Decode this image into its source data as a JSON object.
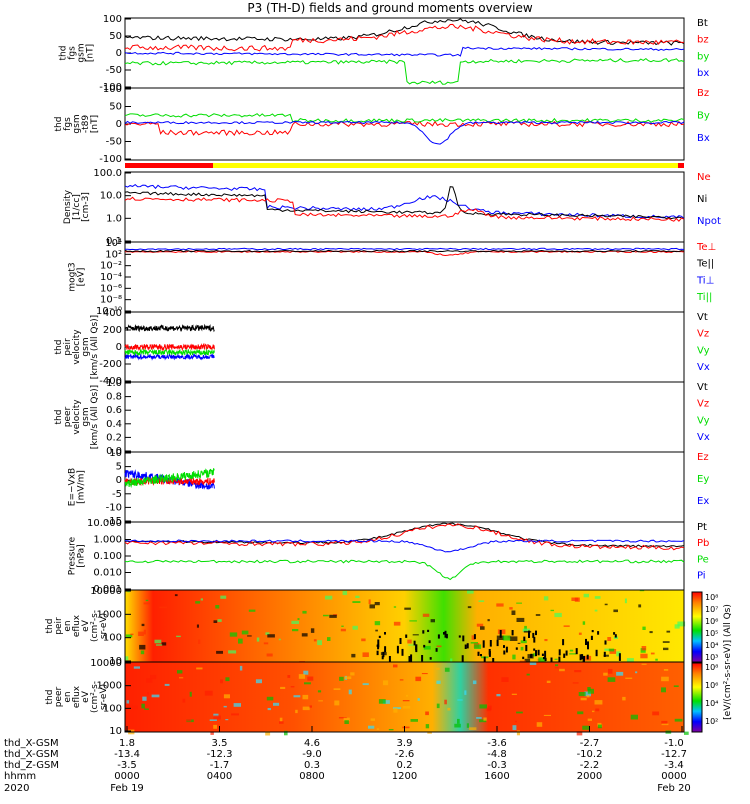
{
  "title": "P3 (TH-D) fields and ground moments overview",
  "colors": {
    "black": "#000000",
    "red": "#ff0000",
    "green": "#00dd00",
    "blue": "#0000ff"
  },
  "chart_data": {
    "type": "line",
    "x_axis": {
      "time_ticks": [
        "0000",
        "0400",
        "0800",
        "1200",
        "1600",
        "2000",
        "0000"
      ],
      "date_ticks": [
        "Feb 19",
        "",
        "",
        "",
        "",
        "",
        "Feb 20"
      ],
      "year": "2020",
      "ephemeris": [
        {
          "label": "thd_X-GSM",
          "values": [
            "1.8",
            "3.5",
            "4.6",
            "3.9",
            "-3.6",
            "-2.7",
            "-1.0"
          ]
        },
        {
          "label": "thd_X-GSM",
          "values": [
            "-13.4",
            "-12.3",
            "-9.0",
            "-2.6",
            "-4.8",
            "-10.2",
            "-12.7"
          ]
        },
        {
          "label": "thd_Z-GSM",
          "values": [
            "-3.5",
            "-1.7",
            "0.3",
            "0.2",
            "-0.3",
            "-2.2",
            "-3.4"
          ]
        },
        {
          "label": "hhmm",
          "values": [
            "0000",
            "0400",
            "0800",
            "1200",
            "1600",
            "2000",
            "0000"
          ]
        }
      ]
    },
    "panels": [
      {
        "id": "fgs",
        "ylabel": [
          "thd",
          "fgs",
          "gsm",
          "[nT]"
        ],
        "yticks": [
          "100",
          "50",
          "0",
          "-50",
          "-100"
        ],
        "ylim": [
          -100,
          100
        ],
        "legend": [
          {
            "name": "Bt",
            "color": "#000000"
          },
          {
            "name": "bz",
            "color": "#ff0000"
          },
          {
            "name": "by",
            "color": "#00dd00"
          },
          {
            "name": "bx",
            "color": "#0000ff"
          }
        ]
      },
      {
        "id": "fgs_t89",
        "ylabel": [
          "thd",
          "fgs",
          "gsm",
          "-t89",
          "[nT]"
        ],
        "yticks": [
          "100",
          "50",
          "0",
          "-50",
          "-100"
        ],
        "ylim": [
          -120,
          100
        ],
        "legend": [
          {
            "name": "Bz",
            "color": "#ff0000"
          },
          {
            "name": "By",
            "color": "#00dd00"
          },
          {
            "name": "Bx",
            "color": "#0000ff"
          }
        ]
      },
      {
        "id": "density",
        "ylabel": [
          "Density",
          "[1/cc]",
          "[cm-3]"
        ],
        "yticks": [
          "100.0",
          "10.0",
          "1.0",
          "0.1"
        ],
        "log": true,
        "legend": [
          {
            "name": "Ne",
            "color": "#ff0000"
          },
          {
            "name": "Ni",
            "color": "#000000"
          },
          {
            "name": "Npot",
            "color": "#0000ff"
          }
        ]
      },
      {
        "id": "temp",
        "ylabel": [
          "mogt3",
          "[eV]"
        ],
        "yticks": [
          "10⁴",
          "10²",
          "10⁻²",
          "10⁻⁴",
          "10⁻⁶",
          "10⁻⁸",
          "10⁻¹⁰"
        ],
        "log": true,
        "legend": [
          {
            "name": "Te⊥",
            "color": "#ff0000"
          },
          {
            "name": "Te||",
            "color": "#000000"
          },
          {
            "name": "Ti⊥",
            "color": "#0000ff"
          },
          {
            "name": "Ti||",
            "color": "#00dd00"
          }
        ]
      },
      {
        "id": "peir_vel",
        "ylabel": [
          "thd",
          "peir",
          "velocity",
          "gsm",
          "[km/s (All Qs)]"
        ],
        "yticks": [
          "400",
          "200",
          "0",
          "-200",
          "-400"
        ],
        "ylim": [
          -400,
          400
        ],
        "legend": [
          {
            "name": "Vt",
            "color": "#000000"
          },
          {
            "name": "Vz",
            "color": "#ff0000"
          },
          {
            "name": "Vy",
            "color": "#00dd00"
          },
          {
            "name": "Vx",
            "color": "#0000ff"
          }
        ]
      },
      {
        "id": "peer_vel",
        "ylabel": [
          "thd",
          "peer",
          "velocity",
          "gsm",
          "[km/s (All Qs)]"
        ],
        "yticks": [
          "1.0",
          "0.8",
          "0.6",
          "0.4",
          "0.2",
          "0.0"
        ],
        "ylim": [
          0,
          1
        ],
        "legend": [
          {
            "name": "Vt",
            "color": "#000000"
          },
          {
            "name": "Vz",
            "color": "#ff0000"
          },
          {
            "name": "Vy",
            "color": "#00dd00"
          },
          {
            "name": "Vx",
            "color": "#0000ff"
          }
        ]
      },
      {
        "id": "efield",
        "ylabel": [
          "E=−VxB",
          "[mV/m]"
        ],
        "yticks": [
          "10",
          "5",
          "0",
          "-5",
          "-10",
          "-15"
        ],
        "ylim": [
          -15,
          10
        ],
        "legend": [
          {
            "name": "Ez",
            "color": "#ff0000"
          },
          {
            "name": "Ey",
            "color": "#00dd00"
          },
          {
            "name": "Ex",
            "color": "#0000ff"
          }
        ]
      },
      {
        "id": "pressure",
        "ylabel": [
          "Pressure",
          "[nPa]"
        ],
        "yticks": [
          "10.000",
          "1.000",
          "0.100",
          "0.010",
          "0.001"
        ],
        "log": true,
        "legend": [
          {
            "name": "Pt",
            "color": "#000000"
          },
          {
            "name": "Pb",
            "color": "#ff0000"
          },
          {
            "name": "Pe",
            "color": "#00dd00"
          },
          {
            "name": "Pi",
            "color": "#0000ff"
          }
        ]
      },
      {
        "id": "peir_spec",
        "type": "heatmap",
        "ylabel": [
          "thd",
          "peir",
          "en",
          "eflux",
          "eV",
          "(cm²-s-",
          "sr-eV)"
        ],
        "yticks": [
          "10000",
          "1000",
          "100",
          "10"
        ],
        "log": true
      },
      {
        "id": "peer_spec",
        "type": "heatmap",
        "ylabel": [
          "thd",
          "peer",
          "en",
          "eflux",
          "eV",
          "(cm²-s-",
          "sr-eV)"
        ],
        "yticks": [
          "10000",
          "1000",
          "100",
          "10"
        ],
        "log": true
      }
    ],
    "colorbar": {
      "label": "[eV/(cm²-s-sr-eV)] (All Qs)",
      "upper_ticks": [
        "10⁸",
        "10⁷",
        "10⁶",
        "10⁵",
        "10⁴",
        "10³"
      ],
      "lower_ticks": [
        "10⁸",
        "10⁶",
        "10⁴",
        "10²"
      ]
    }
  }
}
